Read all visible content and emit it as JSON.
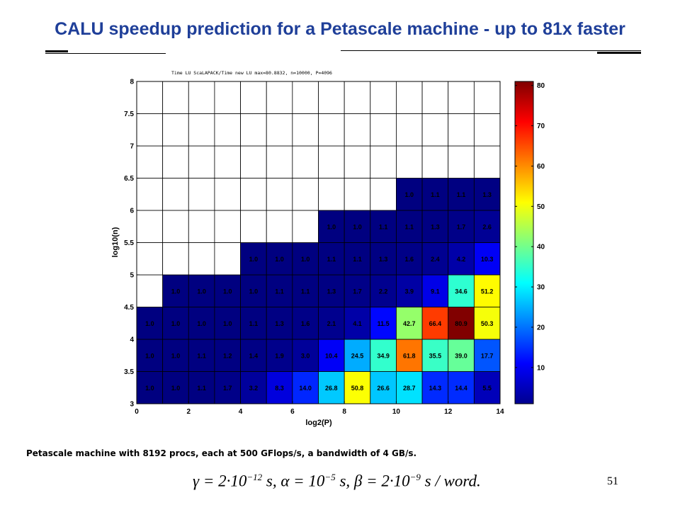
{
  "slide": {
    "title": "CALU speedup prediction for a Petascale machine - up to 81x faster",
    "caption": "Petascale machine with 8192 procs, each at 500 GFlops/s, a bandwidth of 4 GB/s.",
    "formula": {
      "gamma_lhs": "γ = 2·10",
      "gamma_exp": "−12",
      "alpha_lhs": " s, α = 10",
      "alpha_exp": "−5",
      "beta_lhs": " s, β = 2·10",
      "beta_exp": "−9",
      "tail": " s / word."
    },
    "page_number": "51"
  },
  "chart_data": {
    "type": "heatmap",
    "title": "Time LU ScaLAPACK/Time new LU max=80.8832, n=10000, P=4096",
    "xlabel": "log2(P)",
    "ylabel": "log10(n)",
    "xlim": [
      0,
      14
    ],
    "ylim": [
      3,
      8
    ],
    "x_ticks": [
      "0",
      "2",
      "4",
      "6",
      "8",
      "10",
      "12",
      "14"
    ],
    "y_ticks": [
      "3",
      "3.5",
      "4",
      "4.5",
      "5",
      "5.5",
      "6",
      "6.5",
      "7",
      "7.5",
      "8"
    ],
    "colorbar": {
      "min": 1,
      "max": 81,
      "ticks": [
        "10",
        "20",
        "30",
        "40",
        "50",
        "60",
        "70",
        "80"
      ]
    },
    "colormap": "jet",
    "grid": true,
    "rows": [
      {
        "y": 3.25,
        "values": [
          "1.0",
          "1.0",
          "1.1",
          "1.7",
          "3.2",
          "8.3",
          "14.0",
          "26.8",
          "50.8",
          "26.6",
          "28.7",
          "14.3",
          "14.4",
          "5.5"
        ]
      },
      {
        "y": 3.75,
        "values": [
          "1.0",
          "1.0",
          "1.1",
          "1.2",
          "1.4",
          "1.9",
          "3.0",
          "10.4",
          "24.5",
          "34.9",
          "61.8",
          "35.5",
          "39.0",
          "17.7"
        ]
      },
      {
        "y": 4.25,
        "values": [
          "1.0",
          "1.0",
          "1.0",
          "1.0",
          "1.1",
          "1.3",
          "1.6",
          "2.1",
          "4.1",
          "11.5",
          "42.7",
          "66.4",
          "80.9",
          "50.3"
        ]
      },
      {
        "y": 4.75,
        "values": [
          null,
          "1.0",
          "1.0",
          "1.0",
          "1.0",
          "1.1",
          "1.1",
          "1.3",
          "1.7",
          "2.2",
          "3.9",
          "9.1",
          "34.6",
          "51.2"
        ]
      },
      {
        "y": 5.25,
        "values": [
          null,
          null,
          null,
          null,
          "1.0",
          "1.0",
          "1.0",
          "1.1",
          "1.1",
          "1.3",
          "1.6",
          "2.4",
          "4.2",
          "10.3"
        ]
      },
      {
        "y": 5.75,
        "values": [
          null,
          null,
          null,
          null,
          null,
          null,
          null,
          "1.0",
          "1.0",
          "1.1",
          "1.1",
          "1.3",
          "1.7",
          "2.6"
        ]
      },
      {
        "y": 6.25,
        "values": [
          null,
          null,
          null,
          null,
          null,
          null,
          null,
          null,
          null,
          null,
          "1.0",
          "1.1",
          "1.1",
          "1.3"
        ]
      },
      {
        "y": 6.75,
        "values": [
          null,
          null,
          null,
          null,
          null,
          null,
          null,
          null,
          null,
          null,
          null,
          null,
          null,
          null
        ]
      },
      {
        "y": 7.25,
        "values": [
          null,
          null,
          null,
          null,
          null,
          null,
          null,
          null,
          null,
          null,
          null,
          null,
          null,
          null
        ]
      },
      {
        "y": 7.75,
        "values": [
          null,
          null,
          null,
          null,
          null,
          null,
          null,
          null,
          null,
          null,
          null,
          null,
          null,
          null
        ]
      }
    ]
  }
}
